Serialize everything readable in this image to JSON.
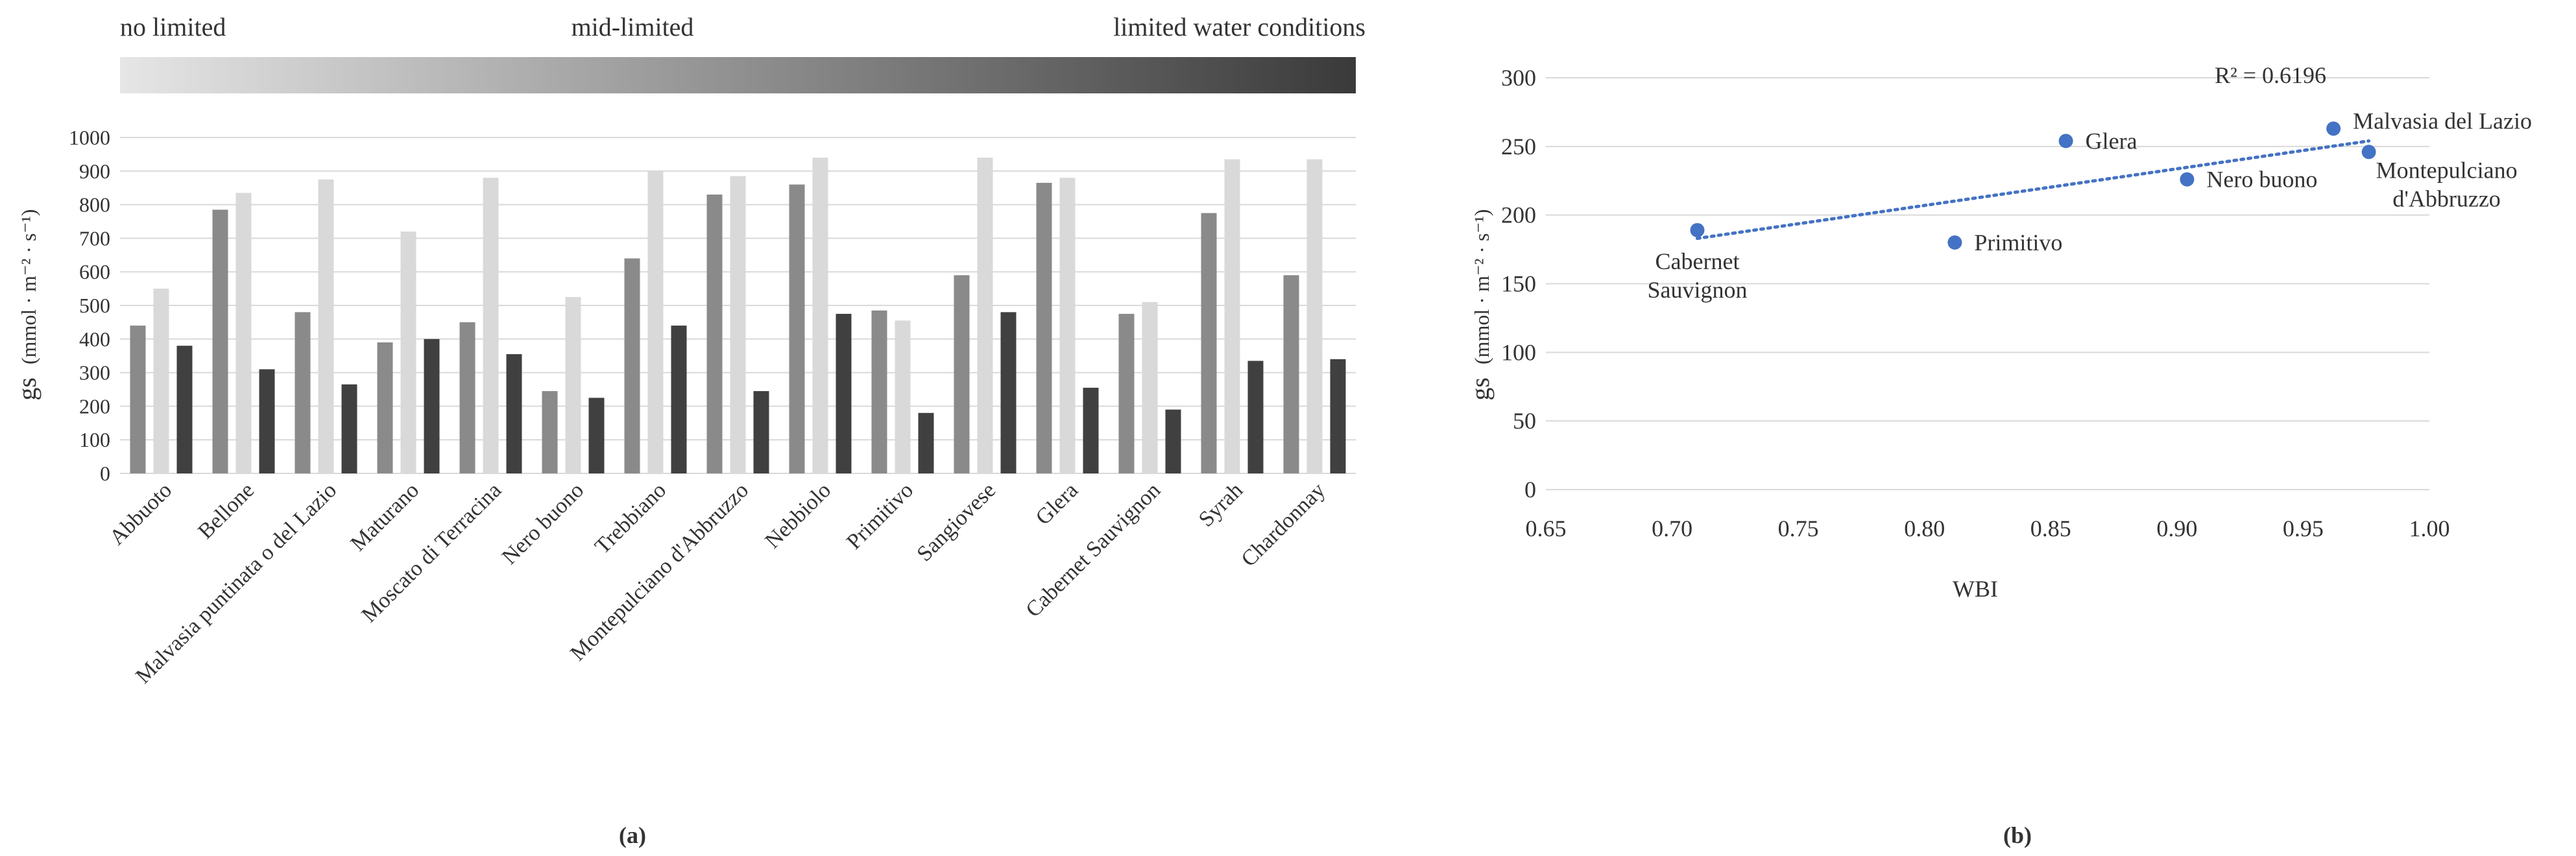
{
  "colors": {
    "series": [
      "#8a8a8a",
      "#d9d9d9",
      "#404040"
    ],
    "grid": "#d9d9d9",
    "point": "#4472c4",
    "trend": "#4472c4",
    "gradient_start": "#e6e6e6",
    "gradient_end": "#3a3a3a"
  },
  "panel_a": {
    "caption": "(a)",
    "gradient_labels": {
      "left": "no limited",
      "middle": "mid-limited",
      "right": "limited water conditions"
    }
  },
  "panel_b": {
    "caption": "(b)",
    "r2_label": "R² = 0.6196"
  },
  "chart_data": [
    {
      "type": "bar",
      "title": "",
      "xlabel": "",
      "ylabel_main": "gs",
      "ylabel_unit": "(mmol · m⁻² · s⁻¹)",
      "ylim": [
        0,
        1000
      ],
      "yticks": [
        0,
        100,
        200,
        300,
        400,
        500,
        600,
        700,
        800,
        900,
        1000
      ],
      "grid": true,
      "categories": [
        "Abbuoto",
        "Bellone",
        "Malvasia puntinata o del Lazio",
        "Maturano",
        "Moscato di Terracina",
        "Nero buono",
        "Trebbiano",
        "Montepulciano d'Abbruzzo",
        "Nebbiolo",
        "Primitivo",
        "Sangiovese",
        "Glera",
        "Cabernet Sauvignon",
        "Syrah",
        "Chardonnay"
      ],
      "series": [
        {
          "name": "no limited",
          "values": [
            440,
            785,
            480,
            390,
            450,
            245,
            640,
            830,
            860,
            485,
            590,
            865,
            475,
            775,
            590
          ]
        },
        {
          "name": "mid-limited",
          "values": [
            550,
            835,
            875,
            720,
            880,
            525,
            900,
            885,
            940,
            455,
            940,
            880,
            510,
            935,
            935
          ]
        },
        {
          "name": "limited water conditions",
          "values": [
            380,
            310,
            265,
            400,
            355,
            225,
            440,
            245,
            475,
            180,
            480,
            255,
            190,
            335,
            340
          ]
        }
      ]
    },
    {
      "type": "scatter",
      "title": "",
      "xlabel": "WBI",
      "ylabel_main": "gs",
      "ylabel_unit": "(mmol · m⁻² · s⁻¹)",
      "xlim": [
        0.65,
        1.0
      ],
      "ylim": [
        0,
        300
      ],
      "xticks": [
        "0.65",
        "0.70",
        "0.75",
        "0.80",
        "0.85",
        "0.90",
        "0.95",
        "1.00"
      ],
      "yticks": [
        0,
        50,
        100,
        150,
        200,
        250,
        300
      ],
      "grid": true,
      "points": [
        {
          "label": [
            "Cabernet",
            "Sauvignon"
          ],
          "x": 0.71,
          "y": 189
        },
        {
          "label": [
            "Primitivo"
          ],
          "x": 0.812,
          "y": 180
        },
        {
          "label": [
            "Glera"
          ],
          "x": 0.856,
          "y": 254
        },
        {
          "label": [
            "Nero buono"
          ],
          "x": 0.904,
          "y": 226
        },
        {
          "label": [
            "Malvasia del Lazio"
          ],
          "x": 0.962,
          "y": 263
        },
        {
          "label": [
            "Montepulciano",
            "d'Abbruzzo"
          ],
          "x": 0.976,
          "y": 246
        }
      ],
      "trendline": {
        "type": "linear",
        "x": [
          0.71,
          0.976
        ],
        "y": [
          183,
          254
        ],
        "r2": 0.6196
      }
    }
  ]
}
